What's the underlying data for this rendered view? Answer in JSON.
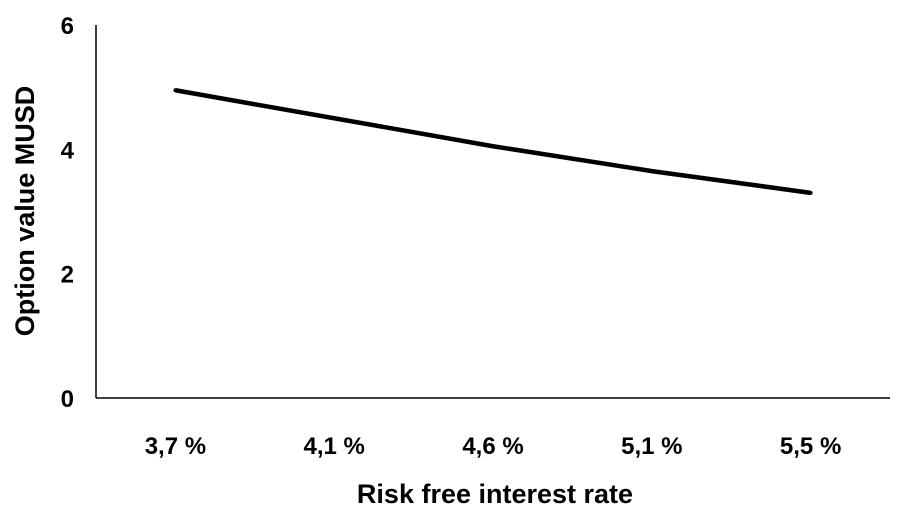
{
  "chart_data": {
    "type": "line",
    "title": "",
    "xlabel": "Risk free interest rate",
    "ylabel": "Option value MUSD",
    "categories": [
      "3,7 %",
      "4,1 %",
      "4,6 %",
      "5,1 %",
      "5,5 %"
    ],
    "series": [
      {
        "values": [
          4.95,
          4.5,
          4.05,
          3.65,
          3.3
        ]
      }
    ],
    "ylim": [
      0,
      6
    ],
    "yticks": [
      "0",
      "2",
      "4",
      "6"
    ],
    "grid": false,
    "legend": "none",
    "line_color": "#000000"
  }
}
